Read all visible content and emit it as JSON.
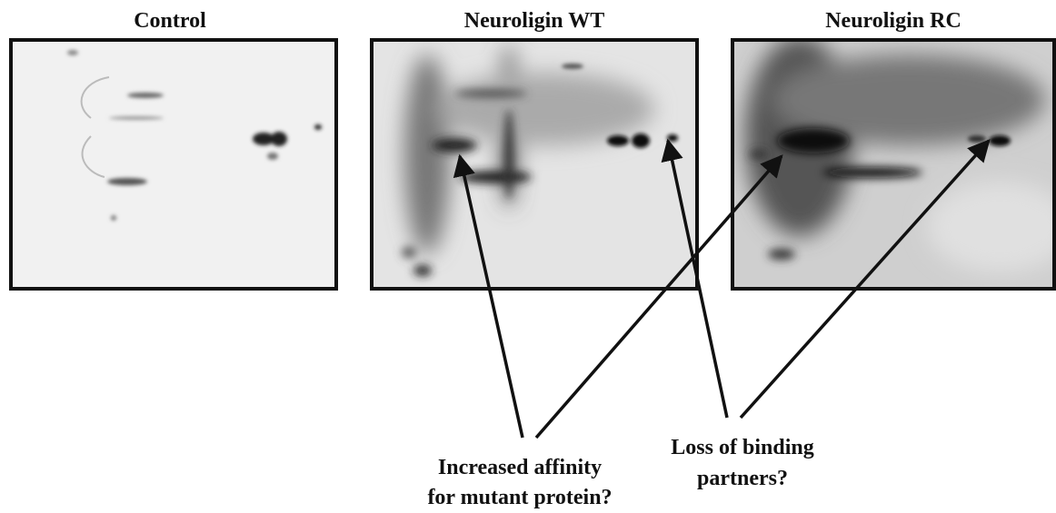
{
  "panels": [
    {
      "title": "Control"
    },
    {
      "title": "Neuroligin WT"
    },
    {
      "title": "Neuroligin RC"
    }
  ],
  "annotations": [
    {
      "lines": [
        "Increased affinity",
        "for mutant protein?"
      ]
    },
    {
      "lines": [
        "Loss of binding",
        "partners?"
      ]
    }
  ]
}
